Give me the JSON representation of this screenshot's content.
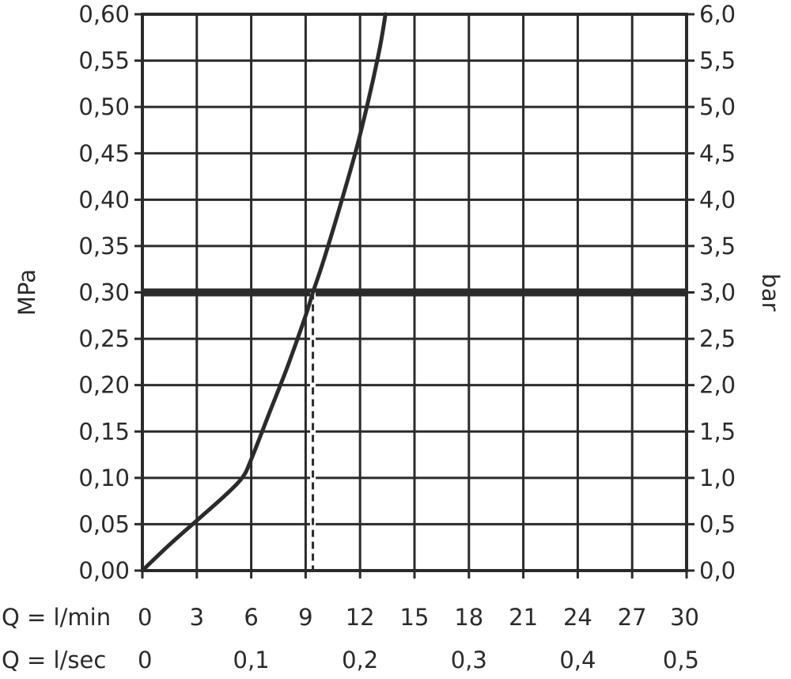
{
  "chart_data": {
    "type": "line",
    "xlabel_primary": "Q = l/min",
    "xlabel_secondary": "Q = l/sec",
    "ylabel_left": "MPa",
    "ylabel_right": "bar",
    "xlim": [
      0,
      30
    ],
    "ylim": [
      0,
      0.6
    ],
    "grid": true,
    "x_ticks": [
      "0",
      "3",
      "6",
      "9",
      "12",
      "15",
      "18",
      "21",
      "24",
      "27",
      "30"
    ],
    "x_secondary_ticks": [
      {
        "x": 0,
        "label": "0"
      },
      {
        "x": 6,
        "label": "0,1"
      },
      {
        "x": 12,
        "label": "0,2"
      },
      {
        "x": 18,
        "label": "0,3"
      },
      {
        "x": 24,
        "label": "0,4"
      },
      {
        "x": 30,
        "label": "0,5"
      }
    ],
    "y_left_ticks": [
      "0,00",
      "0,05",
      "0,10",
      "0,15",
      "0,20",
      "0,25",
      "0,30",
      "0,35",
      "0,40",
      "0,45",
      "0,50",
      "0,55",
      "0,60"
    ],
    "y_right_ticks": [
      "0,0",
      "0,5",
      "1,0",
      "1,5",
      "2,0",
      "2,5",
      "3,0",
      "3,5",
      "4,0",
      "4,5",
      "5,0",
      "5,5",
      "6,0"
    ],
    "series": [
      {
        "x": [
          0,
          1.5,
          3,
          4.5,
          5.5,
          6,
          7,
          8,
          9,
          9.4,
          10,
          11,
          12,
          13,
          13.4
        ],
        "y": [
          0,
          0.028,
          0.054,
          0.08,
          0.1,
          0.12,
          0.17,
          0.22,
          0.275,
          0.3,
          0.335,
          0.4,
          0.47,
          0.555,
          0.6
        ]
      }
    ],
    "reference_line": {
      "y": 0.3
    },
    "reference_drop": {
      "x": 9.4,
      "y": 0.3
    }
  }
}
